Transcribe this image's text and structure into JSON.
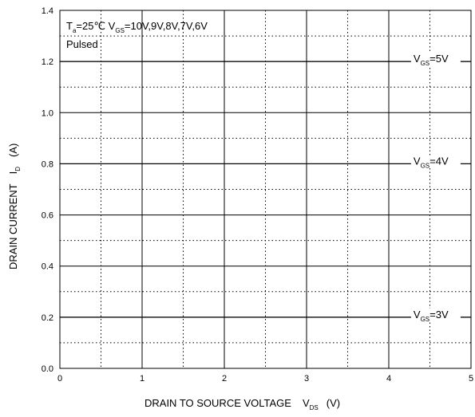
{
  "chart_data": {
    "type": "line",
    "title": "",
    "xlabel": "DRAIN TO SOURCE VOLTAGE",
    "xlabel_symbol": "V",
    "xlabel_sub": "DS",
    "xlabel_unit": "(V)",
    "ylabel": "DRAIN CURRENT",
    "ylabel_symbol": "I",
    "ylabel_sub": "D",
    "ylabel_unit": "(A)",
    "xlim": [
      0,
      5
    ],
    "ylim": [
      0.0,
      1.4
    ],
    "x_ticks": [
      "0",
      "1",
      "2",
      "3",
      "4",
      "5"
    ],
    "y_ticks": [
      "0.0",
      "0.2",
      "0.4",
      "0.6",
      "0.8",
      "1.0",
      "1.2",
      "1.4"
    ],
    "grid": true,
    "annotations": {
      "line1": {
        "prefix": "T",
        "prefix_sub": "a",
        "mid": "=25℃ V",
        "mid_sub": "GS",
        "rest": "=10V,9V,8V,7V,6V"
      },
      "line2": "Pulsed"
    },
    "series": [
      {
        "label_main": "V",
        "label_sub": "GS",
        "label_rest": "=5V",
        "x": [
          0,
          5
        ],
        "y": [
          1.2,
          1.2
        ]
      },
      {
        "label_main": "V",
        "label_sub": "GS",
        "label_rest": "=4V",
        "x": [
          0,
          5
        ],
        "y": [
          0.8,
          0.8
        ]
      },
      {
        "label_main": "V",
        "label_sub": "GS",
        "label_rest": "=3V",
        "x": [
          0,
          5
        ],
        "y": [
          0.2,
          0.2
        ]
      }
    ]
  }
}
